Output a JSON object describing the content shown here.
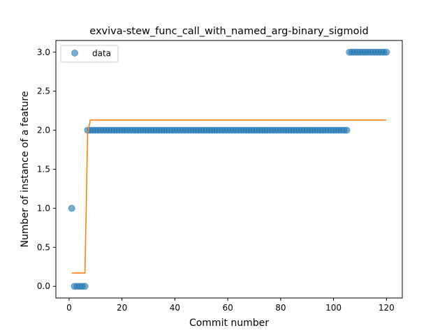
{
  "chart_data": {
    "type": "scatter",
    "title": "exviva-stew_func_call_with_named_arg-binary_sigmoid",
    "xlabel": "Commit number",
    "ylabel": "Number of instance of a feature",
    "xlim": [
      -5,
      126
    ],
    "ylim": [
      -0.15,
      3.15
    ],
    "xticks": [
      0,
      20,
      40,
      60,
      80,
      100,
      120
    ],
    "yticks": [
      0.0,
      0.5,
      1.0,
      1.5,
      2.0,
      2.5,
      3.0
    ],
    "xtick_labels": [
      "0",
      "20",
      "40",
      "60",
      "80",
      "100",
      "120"
    ],
    "ytick_labels": [
      "0.0",
      "0.5",
      "1.0",
      "1.5",
      "2.0",
      "2.5",
      "3.0"
    ],
    "legend": {
      "position": "upper-left",
      "entries": [
        "data"
      ]
    },
    "grid": false,
    "colors": {
      "data": "#1f77b4",
      "fit": "#ff7f0e"
    },
    "series": [
      {
        "name": "data",
        "kind": "scatter",
        "segments": [
          {
            "x_start": 1,
            "x_end": 1,
            "y": 1
          },
          {
            "x_start": 2,
            "x_end": 6,
            "y": 0
          },
          {
            "x_start": 7,
            "x_end": 105,
            "y": 2
          },
          {
            "x_start": 106,
            "x_end": 120,
            "y": 3
          }
        ]
      },
      {
        "kind": "line",
        "x": [
          1,
          6,
          7,
          8,
          120
        ],
        "y": [
          0.17,
          0.17,
          1.95,
          2.13,
          2.13
        ]
      }
    ]
  }
}
